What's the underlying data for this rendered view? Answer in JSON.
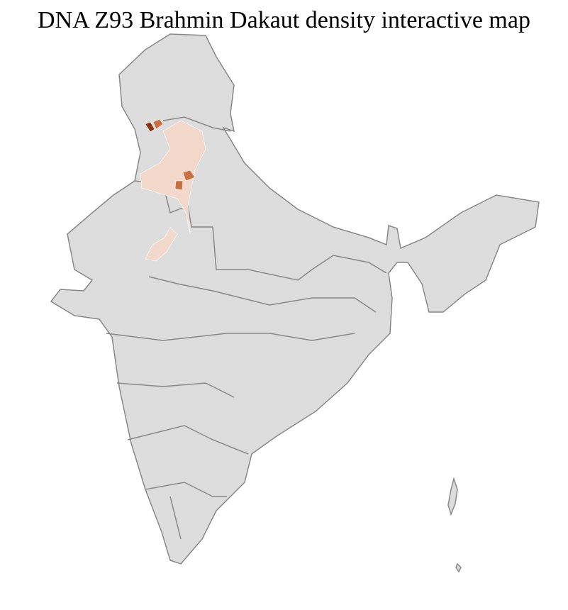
{
  "title": "DNA Z93 Brahmin Dakaut density interactive map",
  "colors": {
    "land": "#dddddd",
    "district_border": "#ffffff",
    "state_border": "#888888",
    "density_low": "#f2d9cb",
    "density_mid": "#c8703f",
    "density_high": "#8a3512"
  }
}
